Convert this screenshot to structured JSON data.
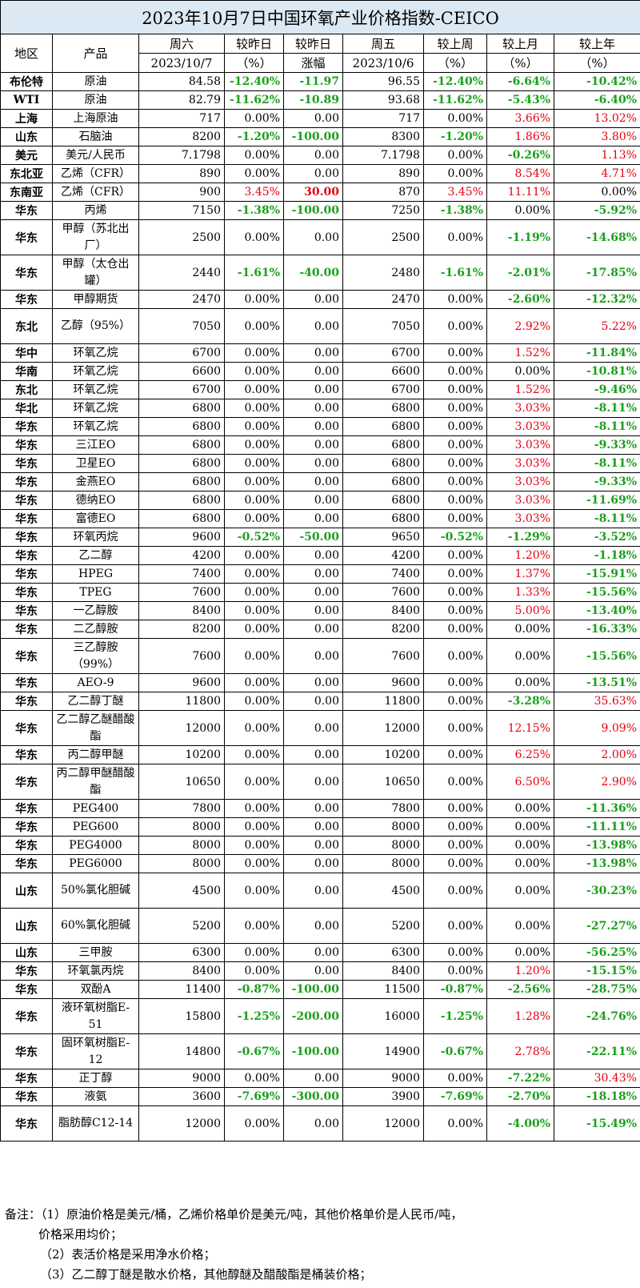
{
  "title": "2023年10月7日中国环氧产业价格指数-CEICO",
  "headers": {
    "region": "地区",
    "product": "产品",
    "sat": "周六",
    "sat_date": "2023/10/7",
    "vs_yday_pct": "较昨日",
    "vs_yday_pct_unit": "（%）",
    "vs_yday_amt": "较昨日",
    "vs_yday_amt_unit": "涨幅",
    "fri": "周五",
    "fri_date": "2023/10/6",
    "vs_week": "较上周",
    "vs_week_unit": "（%）",
    "vs_month": "较上月",
    "vs_month_unit": "（%）",
    "vs_year": "较上年",
    "vs_year_unit": "（%）"
  },
  "rows": [
    {
      "region": "布伦特",
      "product": "原油",
      "sat": "84.58",
      "d1": "-12.40%",
      "d2": "-11.97",
      "fri": "96.55",
      "w": "-12.40%",
      "m": "-6.64%",
      "y": "-10.42%"
    },
    {
      "region": "WTI",
      "product": "原油",
      "sat": "82.79",
      "d1": "-11.62%",
      "d2": "-10.89",
      "fri": "93.68",
      "w": "-11.62%",
      "m": "-5.43%",
      "y": "-6.40%"
    },
    {
      "region": "上海",
      "product": "上海原油",
      "sat": "717",
      "d1": "0.00%",
      "d2": "0.00",
      "fri": "717",
      "w": "0.00%",
      "m": "3.66%",
      "y": "13.02%"
    },
    {
      "region": "山东",
      "product": "石脑油",
      "sat": "8200",
      "d1": "-1.20%",
      "d2": "-100.00",
      "fri": "8300",
      "w": "-1.20%",
      "m": "1.86%",
      "y": "3.80%"
    },
    {
      "region": "美元",
      "product": "美元/人民币",
      "sat": "7.1798",
      "d1": "0.00%",
      "d2": "0.00",
      "fri": "7.1798",
      "w": "0.00%",
      "m": "-0.26%",
      "y": "1.13%"
    },
    {
      "region": "东北亚",
      "product": "乙烯（CFR）",
      "sat": "890",
      "d1": "0.00%",
      "d2": "0.00",
      "fri": "890",
      "w": "0.00%",
      "m": "8.54%",
      "y": "4.71%"
    },
    {
      "region": "东南亚",
      "product": "乙烯（CFR）",
      "sat": "900",
      "d1": "3.45%",
      "d2": "30.00",
      "fri": "870",
      "w": "3.45%",
      "m": "11.11%",
      "y": "0.00%"
    },
    {
      "region": "华东",
      "product": "丙烯",
      "sat": "7150",
      "d1": "-1.38%",
      "d2": "-100.00",
      "fri": "7250",
      "w": "-1.38%",
      "m": "0.00%",
      "y": "-5.92%"
    },
    {
      "region": "华东",
      "product": "甲醇（苏北出厂）",
      "sat": "2500",
      "d1": "0.00%",
      "d2": "0.00",
      "fri": "2500",
      "w": "0.00%",
      "m": "-1.19%",
      "y": "-14.68%"
    },
    {
      "region": "华东",
      "product": "甲醇（太仓出罐）",
      "sat": "2440",
      "d1": "-1.61%",
      "d2": "-40.00",
      "fri": "2480",
      "w": "-1.61%",
      "m": "-2.01%",
      "y": "-17.85%"
    },
    {
      "region": "华东",
      "product": "甲醇期货",
      "sat": "2470",
      "d1": "0.00%",
      "d2": "0.00",
      "fri": "2470",
      "w": "0.00%",
      "m": "-2.60%",
      "y": "-12.32%"
    },
    {
      "region": "东北",
      "product": "乙醇（95%）",
      "sat": "7050",
      "d1": "0.00%",
      "d2": "0.00",
      "fri": "7050",
      "w": "0.00%",
      "m": "2.92%",
      "y": "5.22%"
    },
    {
      "region": "华中",
      "product": "环氧乙烷",
      "sat": "6700",
      "d1": "0.00%",
      "d2": "0.00",
      "fri": "6700",
      "w": "0.00%",
      "m": "1.52%",
      "y": "-11.84%"
    },
    {
      "region": "华南",
      "product": "环氧乙烷",
      "sat": "6600",
      "d1": "0.00%",
      "d2": "0.00",
      "fri": "6600",
      "w": "0.00%",
      "m": "0.00%",
      "y": "-10.81%"
    },
    {
      "region": "东北",
      "product": "环氧乙烷",
      "sat": "6700",
      "d1": "0.00%",
      "d2": "0.00",
      "fri": "6700",
      "w": "0.00%",
      "m": "1.52%",
      "y": "-9.46%"
    },
    {
      "region": "华北",
      "product": "环氧乙烷",
      "sat": "6800",
      "d1": "0.00%",
      "d2": "0.00",
      "fri": "6800",
      "w": "0.00%",
      "m": "3.03%",
      "y": "-8.11%"
    },
    {
      "region": "华东",
      "product": "环氧乙烷",
      "sat": "6800",
      "d1": "0.00%",
      "d2": "0.00",
      "fri": "6800",
      "w": "0.00%",
      "m": "3.03%",
      "y": "-8.11%"
    },
    {
      "region": "华东",
      "product": "三江EO",
      "sat": "6800",
      "d1": "0.00%",
      "d2": "0.00",
      "fri": "6800",
      "w": "0.00%",
      "m": "3.03%",
      "y": "-9.33%"
    },
    {
      "region": "华东",
      "product": "卫星EO",
      "sat": "6800",
      "d1": "0.00%",
      "d2": "0.00",
      "fri": "6800",
      "w": "0.00%",
      "m": "3.03%",
      "y": "-8.11%"
    },
    {
      "region": "华东",
      "product": "金燕EO",
      "sat": "6800",
      "d1": "0.00%",
      "d2": "0.00",
      "fri": "6800",
      "w": "0.00%",
      "m": "3.03%",
      "y": "-9.33%"
    },
    {
      "region": "华东",
      "product": "德纳EO",
      "sat": "6800",
      "d1": "0.00%",
      "d2": "0.00",
      "fri": "6800",
      "w": "0.00%",
      "m": "3.03%",
      "y": "-11.69%"
    },
    {
      "region": "华东",
      "product": "富德EO",
      "sat": "6800",
      "d1": "0.00%",
      "d2": "0.00",
      "fri": "6800",
      "w": "0.00%",
      "m": "3.03%",
      "y": "-8.11%"
    },
    {
      "region": "华东",
      "product": "环氧丙烷",
      "sat": "9600",
      "d1": "-0.52%",
      "d2": "-50.00",
      "fri": "9650",
      "w": "-0.52%",
      "m": "-1.29%",
      "y": "-3.52%"
    },
    {
      "region": "华东",
      "product": "乙二醇",
      "sat": "4200",
      "d1": "0.00%",
      "d2": "0.00",
      "fri": "4200",
      "w": "0.00%",
      "m": "1.20%",
      "y": "-1.18%"
    },
    {
      "region": "华东",
      "product": "HPEG",
      "sat": "7400",
      "d1": "0.00%",
      "d2": "0.00",
      "fri": "7400",
      "w": "0.00%",
      "m": "1.37%",
      "y": "-15.91%"
    },
    {
      "region": "华东",
      "product": "TPEG",
      "sat": "7600",
      "d1": "0.00%",
      "d2": "0.00",
      "fri": "7600",
      "w": "0.00%",
      "m": "1.33%",
      "y": "-15.56%"
    },
    {
      "region": "华东",
      "product": "一乙醇胺",
      "sat": "8400",
      "d1": "0.00%",
      "d2": "0.00",
      "fri": "8400",
      "w": "0.00%",
      "m": "5.00%",
      "y": "-13.40%"
    },
    {
      "region": "华东",
      "product": "二乙醇胺",
      "sat": "8200",
      "d1": "0.00%",
      "d2": "0.00",
      "fri": "8200",
      "w": "0.00%",
      "m": "0.00%",
      "y": "-16.33%"
    },
    {
      "region": "华东",
      "product": "三乙醇胺（99%）",
      "sat": "7600",
      "d1": "0.00%",
      "d2": "0.00",
      "fri": "7600",
      "w": "0.00%",
      "m": "0.00%",
      "y": "-15.56%"
    },
    {
      "region": "华东",
      "product": "AEO-9",
      "sat": "9600",
      "d1": "0.00%",
      "d2": "0.00",
      "fri": "9600",
      "w": "0.00%",
      "m": "0.00%",
      "y": "-13.51%"
    },
    {
      "region": "华东",
      "product": "乙二醇丁醚",
      "sat": "11800",
      "d1": "0.00%",
      "d2": "0.00",
      "fri": "11800",
      "w": "0.00%",
      "m": "-3.28%",
      "y": "35.63%"
    },
    {
      "region": "华东",
      "product": "乙二醇乙醚醋酸酯",
      "sat": "12000",
      "d1": "0.00%",
      "d2": "0.00",
      "fri": "12000",
      "w": "0.00%",
      "m": "12.15%",
      "y": "9.09%"
    },
    {
      "region": "华东",
      "product": "丙二醇甲醚",
      "sat": "10200",
      "d1": "0.00%",
      "d2": "0.00",
      "fri": "10200",
      "w": "0.00%",
      "m": "6.25%",
      "y": "2.00%"
    },
    {
      "region": "华东",
      "product": "丙二醇甲醚醋酸酯",
      "sat": "10650",
      "d1": "0.00%",
      "d2": "0.00",
      "fri": "10650",
      "w": "0.00%",
      "m": "6.50%",
      "y": "2.90%"
    },
    {
      "region": "华东",
      "product": "PEG400",
      "sat": "7800",
      "d1": "0.00%",
      "d2": "0.00",
      "fri": "7800",
      "w": "0.00%",
      "m": "0.00%",
      "y": "-11.36%"
    },
    {
      "region": "华东",
      "product": "PEG600",
      "sat": "8000",
      "d1": "0.00%",
      "d2": "0.00",
      "fri": "8000",
      "w": "0.00%",
      "m": "0.00%",
      "y": "-11.11%"
    },
    {
      "region": "华东",
      "product": "PEG4000",
      "sat": "8000",
      "d1": "0.00%",
      "d2": "0.00",
      "fri": "8000",
      "w": "0.00%",
      "m": "0.00%",
      "y": "-13.98%"
    },
    {
      "region": "华东",
      "product": "PEG6000",
      "sat": "8000",
      "d1": "0.00%",
      "d2": "0.00",
      "fri": "8000",
      "w": "0.00%",
      "m": "0.00%",
      "y": "-13.98%"
    },
    {
      "region": "山东",
      "product": "50%氯化胆碱",
      "sat": "4500",
      "d1": "0.00%",
      "d2": "0.00",
      "fri": "4500",
      "w": "0.00%",
      "m": "0.00%",
      "y": "-30.23%"
    },
    {
      "region": "山东",
      "product": "60%氯化胆碱",
      "sat": "5200",
      "d1": "0.00%",
      "d2": "0.00",
      "fri": "5200",
      "w": "0.00%",
      "m": "0.00%",
      "y": "-27.27%"
    },
    {
      "region": "山东",
      "product": "三甲胺",
      "sat": "6300",
      "d1": "0.00%",
      "d2": "0.00",
      "fri": "6300",
      "w": "0.00%",
      "m": "0.00%",
      "y": "-56.25%"
    },
    {
      "region": "华东",
      "product": "环氧氯丙烷",
      "sat": "8400",
      "d1": "0.00%",
      "d2": "0.00",
      "fri": "8400",
      "w": "0.00%",
      "m": "1.20%",
      "y": "-15.15%"
    },
    {
      "region": "华东",
      "product": "双酚A",
      "sat": "11400",
      "d1": "-0.87%",
      "d2": "-100.00",
      "fri": "11500",
      "w": "-0.87%",
      "m": "-2.56%",
      "y": "-28.75%"
    },
    {
      "region": "华东",
      "product": "液环氧树脂E-51",
      "sat": "15800",
      "d1": "-1.25%",
      "d2": "-200.00",
      "fri": "16000",
      "w": "-1.25%",
      "m": "1.28%",
      "y": "-24.76%"
    },
    {
      "region": "华东",
      "product": "固环氧树脂E-12",
      "sat": "14800",
      "d1": "-0.67%",
      "d2": "-100.00",
      "fri": "14900",
      "w": "-0.67%",
      "m": "2.78%",
      "y": "-22.11%"
    },
    {
      "region": "华东",
      "product": "正丁醇",
      "sat": "9000",
      "d1": "0.00%",
      "d2": "0.00",
      "fri": "9000",
      "w": "0.00%",
      "m": "-7.22%",
      "y": "30.43%"
    },
    {
      "region": "华东",
      "product": "液氨",
      "sat": "3600",
      "d1": "-7.69%",
      "d2": "-300.00",
      "fri": "3900",
      "w": "-7.69%",
      "m": "-2.70%",
      "y": "-18.18%"
    },
    {
      "region": "华东",
      "product": "脂肪醇C12-14",
      "sat": "12000",
      "d1": "0.00%",
      "d2": "0.00",
      "fri": "12000",
      "w": "0.00%",
      "m": "-4.00%",
      "y": "-15.49%"
    }
  ],
  "notes": [
    "备注：（1）原油价格是美元/桶，乙烯价格单价是美元/吨，其他价格单价是人民币/吨，",
    "价格采用均价；",
    "（2）表活价格是采用净水价格；",
    "（3）乙二醇丁醚是散水价格，其他醇醚及醋酸酯是桶装价格；"
  ]
}
